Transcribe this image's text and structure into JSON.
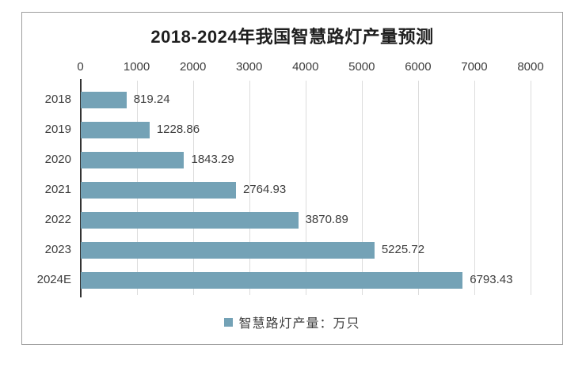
{
  "chart_data": {
    "type": "bar",
    "orientation": "horizontal",
    "title": "2018-2024年我国智慧路灯产量预测",
    "categories": [
      "2018",
      "2019",
      "2020",
      "2021",
      "2022",
      "2023",
      "2024E"
    ],
    "values": [
      819.24,
      1228.86,
      1843.29,
      2764.93,
      3870.89,
      5225.72,
      6793.43
    ],
    "value_labels": [
      "819.24",
      "1228.86",
      "1843.29",
      "2764.93",
      "3870.89",
      "5225.72",
      "6793.43"
    ],
    "legend_label": "智慧路灯产量：万只",
    "value_axis": {
      "min": 0,
      "max": 8000,
      "step": 1000,
      "position": "top"
    },
    "tick_labels": [
      "0",
      "1000",
      "2000",
      "3000",
      "4000",
      "5000",
      "6000",
      "7000",
      "8000"
    ],
    "grid": true,
    "legend_position": "bottom",
    "colors": {
      "bar": "#74a2b6",
      "legend_marker": "#74a2b6",
      "gridline": "#dcdcdc",
      "axis_line": "#333333",
      "border": "#9e9e9e",
      "text": "#3d3d3d",
      "title": "#1f1f1f",
      "background": "#ffffff"
    }
  }
}
